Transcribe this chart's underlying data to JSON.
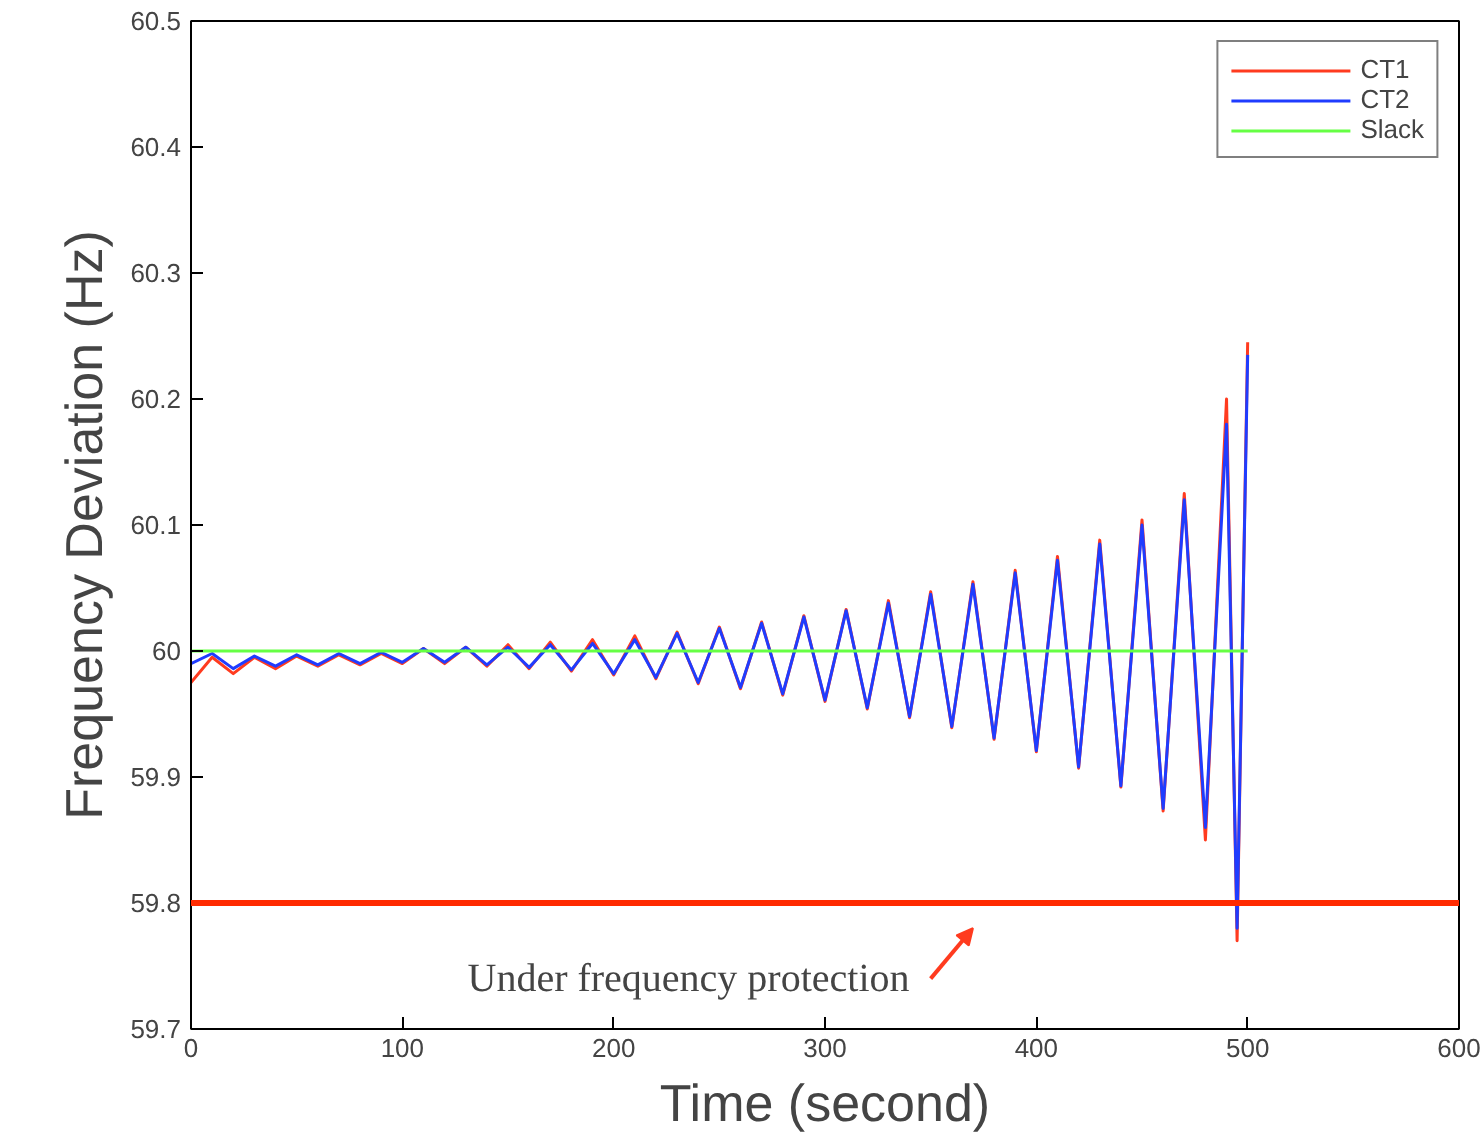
{
  "chart_data": {
    "type": "line",
    "xlabel": "Time (second)",
    "ylabel": "Frequency Deviation (Hz)",
    "x": [
      0,
      10,
      20,
      30,
      40,
      50,
      60,
      70,
      80,
      90,
      100,
      110,
      120,
      130,
      140,
      150,
      160,
      170,
      180,
      190,
      200,
      210,
      220,
      230,
      240,
      250,
      260,
      270,
      280,
      290,
      300,
      310,
      320,
      330,
      340,
      350,
      360,
      370,
      380,
      390,
      400,
      410,
      420,
      430,
      440,
      450,
      460,
      470,
      480,
      490,
      495,
      500
    ],
    "series": [
      {
        "name": "CT1",
        "color": "#ff3b1f",
        "values": [
          59.975,
          59.995,
          59.982,
          59.995,
          59.986,
          59.996,
          59.988,
          59.997,
          59.989,
          59.998,
          59.99,
          60.002,
          59.99,
          60.003,
          59.988,
          60.005,
          59.986,
          60.007,
          59.984,
          60.009,
          59.981,
          60.012,
          59.978,
          60.015,
          59.974,
          60.019,
          59.97,
          60.023,
          59.965,
          60.028,
          59.96,
          60.033,
          59.954,
          60.04,
          59.947,
          60.047,
          59.939,
          60.055,
          59.93,
          60.064,
          59.92,
          60.075,
          59.907,
          60.088,
          59.892,
          60.104,
          59.873,
          60.125,
          59.85,
          60.2,
          59.77,
          60.245
        ]
      },
      {
        "name": "CT2",
        "color": "#1f3cff",
        "values": [
          59.99,
          59.998,
          59.986,
          59.996,
          59.988,
          59.997,
          59.989,
          59.998,
          59.99,
          59.999,
          59.991,
          60.002,
          59.991,
          60.003,
          59.989,
          60.003,
          59.987,
          60.005,
          59.985,
          60.006,
          59.982,
          60.009,
          59.979,
          60.014,
          59.975,
          60.018,
          59.971,
          60.022,
          59.966,
          60.027,
          59.961,
          60.032,
          59.955,
          60.038,
          59.948,
          60.045,
          59.94,
          60.053,
          59.931,
          60.062,
          59.921,
          60.072,
          59.908,
          60.085,
          59.893,
          60.1,
          59.875,
          60.12,
          59.86,
          60.18,
          59.78,
          60.235
        ]
      },
      {
        "name": "Slack",
        "color": "#66ff44",
        "x": [
          0,
          500
        ],
        "values": [
          60,
          60
        ]
      }
    ],
    "xlim": [
      0,
      600
    ],
    "ylim": [
      59.7,
      60.5
    ],
    "xticks": [
      0,
      100,
      200,
      300,
      400,
      500,
      600
    ],
    "yticks": [
      59.7,
      59.8,
      59.9,
      60,
      60.1,
      60.2,
      60.3,
      60.4,
      60.5
    ],
    "ref_lines": [
      {
        "axis": "y",
        "value": 59.8,
        "label": null,
        "color": "#ff2a00"
      }
    ],
    "annotations": [
      {
        "text": "Under frequency protection",
        "x": 365,
        "y": 59.8
      }
    ],
    "grid": false,
    "legend": "top right",
    "line_style": "solid",
    "marker": "none"
  }
}
